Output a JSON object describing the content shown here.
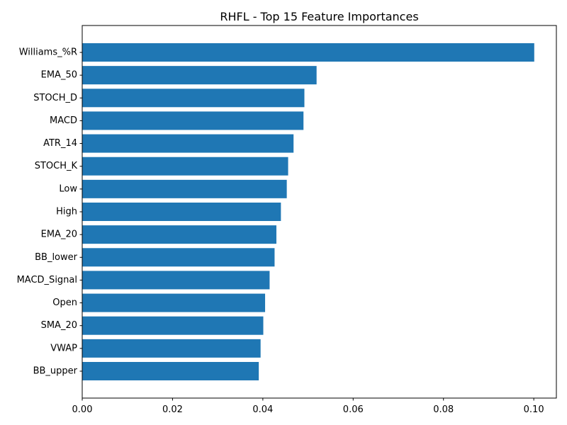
{
  "chart_data": {
    "type": "bar",
    "orientation": "horizontal",
    "title": "RHFL - Top 15 Feature Importances",
    "xlabel": "",
    "ylabel": "",
    "xlim": [
      0,
      0.105
    ],
    "grid": false,
    "bar_color": "#1f77b4",
    "categories": [
      "Williams_%R",
      "EMA_50",
      "STOCH_D",
      "MACD",
      "ATR_14",
      "STOCH_K",
      "Low",
      "High",
      "EMA_20",
      "BB_lower",
      "MACD_Signal",
      "Open",
      "SMA_20",
      "VWAP",
      "BB_upper"
    ],
    "values": [
      0.1001,
      0.0519,
      0.0492,
      0.049,
      0.0468,
      0.0456,
      0.0453,
      0.044,
      0.043,
      0.0426,
      0.0415,
      0.0405,
      0.0401,
      0.0395,
      0.0391
    ],
    "xticks": [
      0,
      0.02,
      0.04,
      0.06,
      0.08,
      0.1
    ],
    "xtick_labels": [
      "0.00",
      "0.02",
      "0.04",
      "0.06",
      "0.08",
      "0.10"
    ]
  }
}
